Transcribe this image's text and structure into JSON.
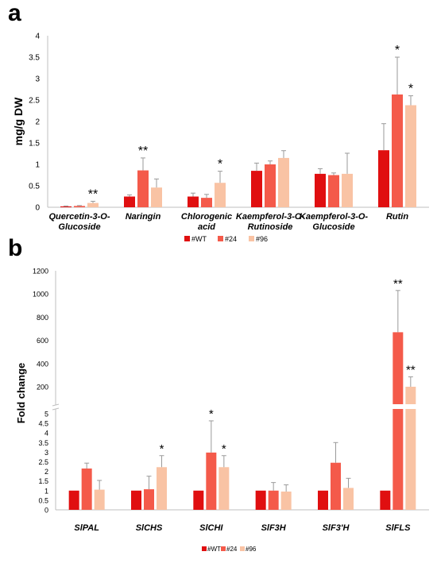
{
  "colors": {
    "wt": "#e00f10",
    "l24": "#f45a4a",
    "l96": "#f9c3a4",
    "axis": "#bfbfbf",
    "err": "#9a9a9a",
    "text": "#000000",
    "grid": "#d9d9d9"
  },
  "panel_a_letter": "a",
  "panel_b_letter": "b",
  "chart_data": [
    {
      "type": "bar",
      "panel": "a",
      "ylabel": "mg/g DW",
      "xlabel": "",
      "ylim": [
        0,
        4
      ],
      "yticks": [
        "0",
        "0.5",
        "1",
        "1.5",
        "2",
        "2.5",
        "3",
        "3.5",
        "4"
      ],
      "categories": [
        [
          "Quercetin-3-O-",
          "Glucoside"
        ],
        [
          "Naringin"
        ],
        [
          "Chlorogenic",
          "acid"
        ],
        [
          "Kaempferol-3-O-",
          "Rutinoside"
        ],
        [
          "Kaempferol-3-O-",
          "Glucoside"
        ],
        [
          "Rutin"
        ]
      ],
      "series": [
        {
          "name": "#WT",
          "color": "#e00f10",
          "values": [
            0.02,
            0.25,
            0.25,
            0.85,
            0.78,
            1.33
          ],
          "errors": [
            0.01,
            0.04,
            0.08,
            0.18,
            0.12,
            0.62
          ]
        },
        {
          "name": "#24",
          "color": "#f45a4a",
          "values": [
            0.03,
            0.86,
            0.22,
            1.0,
            0.75,
            2.63
          ],
          "errors": [
            0.01,
            0.29,
            0.08,
            0.08,
            0.05,
            0.87
          ]
        },
        {
          "name": "#96",
          "color": "#f9c3a4",
          "values": [
            0.1,
            0.46,
            0.57,
            1.15,
            0.78,
            2.38
          ],
          "errors": [
            0.04,
            0.2,
            0.27,
            0.17,
            0.48,
            0.22
          ]
        }
      ],
      "annotations": [
        {
          "category": 0,
          "series": 2,
          "text": "**"
        },
        {
          "category": 1,
          "series": 1,
          "text": "**"
        },
        {
          "category": 2,
          "series": 2,
          "text": "*"
        },
        {
          "category": 5,
          "series": 1,
          "text": "*"
        },
        {
          "category": 5,
          "series": 2,
          "text": "*"
        }
      ],
      "legend": [
        "#WT",
        "#24",
        "#96"
      ],
      "legend_position": "bottom",
      "grid": false
    },
    {
      "type": "bar",
      "panel": "b",
      "ylabel": "Fold change",
      "xlabel": "",
      "broken_axis": true,
      "ylim_lower": [
        0,
        5
      ],
      "ylim_upper": [
        200,
        1200
      ],
      "yticks_lower": [
        "0",
        "0.5",
        "1",
        "1.5",
        "2",
        "2.5",
        "3",
        "3.5",
        "4",
        "4.5",
        "5"
      ],
      "yticks_upper": [
        "200",
        "400",
        "600",
        "800",
        "1000",
        "1200"
      ],
      "categories": [
        "SlPAL",
        "SlCHS",
        "SlCHI",
        "SlF3H",
        "SlF3'H",
        "SlFLS"
      ],
      "series": [
        {
          "name": "#WT",
          "color": "#e00f10",
          "values": [
            1,
            1,
            1,
            1,
            1,
            1
          ],
          "errors": [
            0,
            0,
            0,
            0,
            0,
            0
          ]
        },
        {
          "name": "#24",
          "color": "#f45a4a",
          "values": [
            2.15,
            1.07,
            2.98,
            1.0,
            2.45,
            670
          ],
          "errors": [
            0.28,
            0.68,
            1.65,
            0.42,
            1.05,
            360
          ]
        },
        {
          "name": "#96",
          "color": "#f9c3a4",
          "values": [
            1.05,
            2.22,
            2.22,
            0.95,
            1.14,
            200
          ],
          "errors": [
            0.48,
            0.6,
            0.6,
            0.35,
            0.5,
            85
          ]
        }
      ],
      "annotations": [
        {
          "category": 1,
          "series": 2,
          "text": "*"
        },
        {
          "category": 2,
          "series": 1,
          "text": "*"
        },
        {
          "category": 2,
          "series": 2,
          "text": "*"
        },
        {
          "category": 5,
          "series": 1,
          "text": "**"
        },
        {
          "category": 5,
          "series": 2,
          "text": "**"
        }
      ],
      "legend": [
        "#WT",
        "#24",
        "#96"
      ],
      "legend_position": "bottom",
      "grid": false
    }
  ]
}
